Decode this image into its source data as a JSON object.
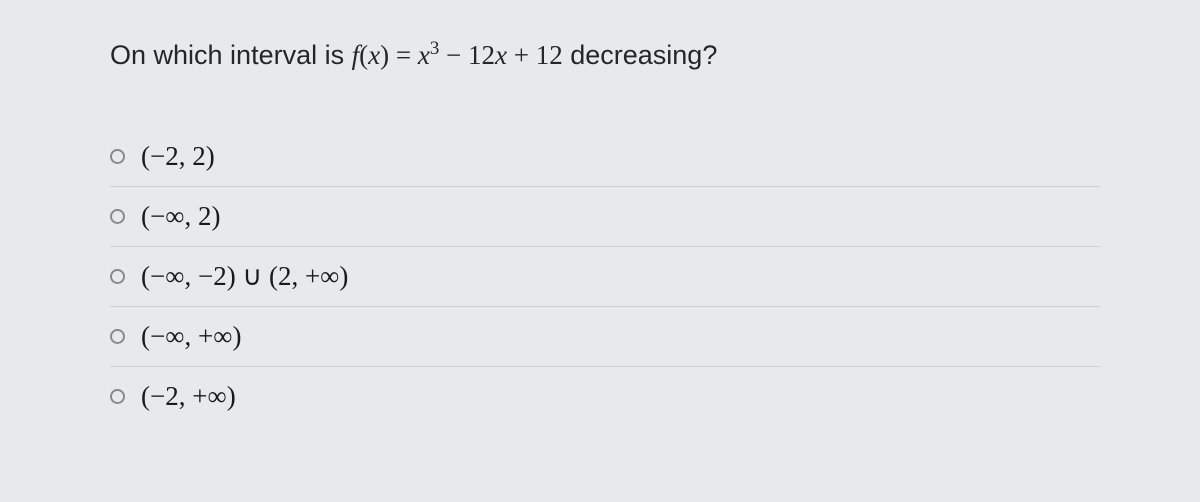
{
  "question": {
    "prefix": "On which interval is",
    "func_name": "f",
    "func_arg": "x",
    "equals": " = ",
    "term1_base": "x",
    "term1_exp": "3",
    "minus": " − ",
    "term2": "12",
    "term2_var": "x",
    "plus": " + ",
    "term3": "12",
    "suffix": " decreasing?"
  },
  "options": [
    {
      "label": "(−2, 2)"
    },
    {
      "label": "(−∞, 2)"
    },
    {
      "label": "(−∞, −2) ∪ (2, +∞)"
    },
    {
      "label": "(−∞, +∞)"
    },
    {
      "label": "(−2, +∞)"
    }
  ],
  "style": {
    "background_color": "#e8e9ed",
    "text_color": "#262626",
    "option_text_color": "#1a1a1a",
    "radio_border_color": "#8a8a8a",
    "divider_color": "#d0d0d0",
    "question_fontsize": 27,
    "option_fontsize": 27
  }
}
